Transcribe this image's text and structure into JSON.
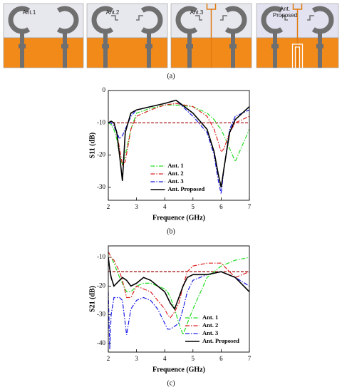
{
  "panel_a": {
    "labels": [
      "Ant.1",
      "Ant.2",
      "Ant.3",
      "Ant. Proposed"
    ],
    "caption": "(a)"
  },
  "chart_data": [
    {
      "type": "line",
      "caption": "(b)",
      "x_label": "Frequence (GHz)",
      "y_label": "S11 (dB)",
      "x": [
        2,
        2.1,
        2.2,
        2.3,
        2.4,
        2.5,
        2.6,
        2.8,
        3,
        3.5,
        4,
        4.4,
        5,
        5.5,
        5.75,
        5.9,
        6,
        6.1,
        6.3,
        6.5,
        7
      ],
      "series": [
        {
          "name": "Ant. 1",
          "color": "#22dd22",
          "linestyle": "dashdot",
          "values": [
            -10,
            -10.5,
            -12,
            -15,
            -20,
            -23,
            -20,
            -12,
            -7,
            -5.5,
            -4.5,
            -4.5,
            -5,
            -7,
            -9,
            -11,
            -12,
            -14,
            -18,
            -22,
            -12
          ]
        },
        {
          "name": "Ant. 2",
          "color": "#dd2222",
          "linestyle": "dashdot",
          "values": [
            -10,
            -10,
            -11,
            -13,
            -18,
            -23,
            -22,
            -12,
            -8,
            -6,
            -4.5,
            -4,
            -5,
            -8,
            -12,
            -16,
            -19,
            -18,
            -13,
            -10,
            -8
          ]
        },
        {
          "name": "Ant. 3",
          "color": "#1a1ae6",
          "linestyle": "dashdot",
          "values": [
            -10,
            -10,
            -11,
            -13,
            -15,
            -14,
            -12,
            -8,
            -6,
            -5,
            -4,
            -3,
            -8,
            -13,
            -20,
            -28,
            -32,
            -24,
            -12,
            -8,
            -6
          ]
        },
        {
          "name": "Ant. Proposed",
          "color": "#000000",
          "linestyle": "solid",
          "values": [
            -10,
            -9.5,
            -10,
            -13,
            -20,
            -28,
            -13,
            -7,
            -6,
            -5,
            -4,
            -3,
            -7,
            -12,
            -19,
            -26,
            -30,
            -24,
            -13,
            -9,
            -5
          ]
        }
      ],
      "reference_line": -10,
      "reference_color": "#a00000",
      "xlim": [
        2,
        7
      ],
      "xticks": [
        2,
        3,
        4,
        5,
        6,
        7
      ],
      "ylim": [
        -34,
        0
      ],
      "yticks": [
        -30,
        -20,
        -10,
        0
      ],
      "legend": "lower center"
    },
    {
      "type": "line",
      "caption": "(c)",
      "x_label": "Frequence (GHz)",
      "y_label": "S21 (dB)",
      "x": [
        2,
        2.05,
        2.1,
        2.2,
        2.4,
        2.5,
        2.65,
        2.8,
        3,
        3.25,
        3.5,
        3.75,
        4,
        4.1,
        4.2,
        4.35,
        4.5,
        4.65,
        4.8,
        5,
        5.5,
        6,
        6.5,
        7
      ],
      "series": [
        {
          "name": "Ant. 1",
          "color": "#22dd22",
          "linestyle": "dashdot",
          "values": [
            -8,
            -9,
            -10,
            -12,
            -17,
            -19,
            -22,
            -22,
            -20,
            -19,
            -19,
            -20,
            -21,
            -22,
            -24,
            -28,
            -33,
            -37,
            -33,
            -28,
            -17,
            -13,
            -11,
            -10
          ]
        },
        {
          "name": "Ant. 2",
          "color": "#dd2222",
          "linestyle": "dashdot",
          "values": [
            -8,
            -9,
            -10,
            -11,
            -15,
            -18,
            -24,
            -24,
            -20,
            -21,
            -22,
            -25,
            -28,
            -30,
            -31,
            -29,
            -26,
            -20,
            -15,
            -13,
            -12,
            -12,
            -17,
            -15
          ]
        },
        {
          "name": "Ant. 3",
          "color": "#1a1ae6",
          "linestyle": "dashdot",
          "values": [
            -22,
            -42,
            -30,
            -24,
            -24,
            -25,
            -37,
            -28,
            -25,
            -24,
            -25,
            -28,
            -33,
            -35,
            -35,
            -34,
            -33,
            -28,
            -22,
            -18,
            -16,
            -15,
            -17,
            -20
          ]
        },
        {
          "name": "Ant. Proposed",
          "color": "#000000",
          "linestyle": "solid",
          "values": [
            -10,
            -14,
            -17,
            -20,
            -18,
            -17,
            -18,
            -20,
            -19,
            -17,
            -18,
            -20,
            -22,
            -24,
            -26,
            -28,
            -24,
            -20,
            -17,
            -16,
            -16,
            -15,
            -17,
            -22
          ]
        }
      ],
      "reference_line": -15,
      "reference_color": "#a00000",
      "xlim": [
        2,
        7
      ],
      "xticks": [
        2,
        3,
        4,
        5,
        6,
        7
      ],
      "ylim": [
        -43,
        -6
      ],
      "yticks": [
        -40,
        -30,
        -20,
        -10
      ],
      "legend": "lower right"
    }
  ]
}
